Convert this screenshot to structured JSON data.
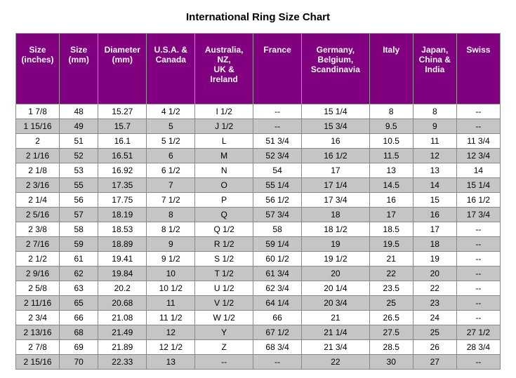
{
  "title": "International Ring Size Chart",
  "table": {
    "header_bg": "#800080",
    "header_color": "#ffffff",
    "row_odd_bg": "#ffffff",
    "row_even_bg": "#c5c5c5",
    "border_color": "#888888",
    "font_family": "Arial",
    "title_fontsize": 15,
    "header_fontsize": 12,
    "cell_fontsize": 12,
    "columns": [
      "Size (inches)",
      "Size (mm)",
      "Diameter (mm)",
      "U.S.A. & Canada",
      "Australia, NZ, UK & Ireland",
      "France",
      "Germany, Belgium, Scandinavia",
      "Italy",
      "Japan, China & India",
      "Swiss"
    ],
    "rows": [
      [
        "1  7/8",
        "48",
        "15.27",
        "4  1/2",
        "I  1/2",
        "--",
        "15  1/4",
        "8",
        "8",
        "--"
      ],
      [
        "1 15/16",
        "49",
        "15.7",
        "5",
        "J  1/2",
        "--",
        "15  3/4",
        "9.5",
        "9",
        "--"
      ],
      [
        "2",
        "51",
        "16.1",
        "5  1/2",
        "L",
        "51  3/4",
        "16",
        "10.5",
        "11",
        "11  3/4"
      ],
      [
        "2  1/16",
        "52",
        "16.51",
        "6",
        "M",
        "52  3/4",
        "16  1/2",
        "11.5",
        "12",
        "12  3/4"
      ],
      [
        "2  1/8",
        "53",
        "16.92",
        "6  1/2",
        "N",
        "54",
        "17",
        "13",
        "13",
        "14"
      ],
      [
        "2  3/16",
        "55",
        "17.35",
        "7",
        "O",
        "55  1/4",
        "17  1/4",
        "14.5",
        "14",
        "15  1/4"
      ],
      [
        "2  1/4",
        "56",
        "17.75",
        "7  1/2",
        "P",
        "56  1/2",
        "17  3/4",
        "16",
        "15",
        "16  1/2"
      ],
      [
        "2  5/16",
        "57",
        "18.19",
        "8",
        "Q",
        "57  3/4",
        "18",
        "17",
        "16",
        "17  3/4"
      ],
      [
        "2  3/8",
        "58",
        "18.53",
        "8  1/2",
        "Q  1/2",
        "58",
        "18  1/2",
        "18.5",
        "17",
        "--"
      ],
      [
        "2  7/16",
        "59",
        "18.89",
        "9",
        "R  1/2",
        "59  1/4",
        "19",
        "19.5",
        "18",
        "--"
      ],
      [
        "2  1/2",
        "61",
        "19.41",
        "9  1/2",
        "S  1/2",
        "60  1/2",
        "19  1/2",
        "21",
        "19",
        "--"
      ],
      [
        "2  9/16",
        "62",
        "19.84",
        "10",
        "T  1/2",
        "61  3/4",
        "20",
        "22",
        "20",
        "--"
      ],
      [
        "2  5/8",
        "63",
        "20.2",
        "10  1/2",
        "U  1/2",
        "62  3/4",
        "20  1/4",
        "23.5",
        "22",
        "--"
      ],
      [
        "2 11/16",
        "65",
        "20.68",
        "11",
        "V  1/2",
        "64  1/4",
        "20  3/4",
        "25",
        "23",
        "--"
      ],
      [
        "2  3/4",
        "66",
        "21.08",
        "11  1/2",
        "W  1/2",
        "66",
        "21",
        "26.5",
        "24",
        "--"
      ],
      [
        "2 13/16",
        "68",
        "21.49",
        "12",
        "Y",
        "67  1/2",
        "21  1/4",
        "27.5",
        "25",
        "27  1/2"
      ],
      [
        "2  7/8",
        "69",
        "21.89",
        "12  1/2",
        "Z",
        "68  3/4",
        "21  3/4",
        "28.5",
        "26",
        "28  3/4"
      ],
      [
        "2 15/16",
        "70",
        "22.33",
        "13",
        "--",
        "--",
        "22",
        "30",
        "27",
        "--"
      ]
    ]
  }
}
